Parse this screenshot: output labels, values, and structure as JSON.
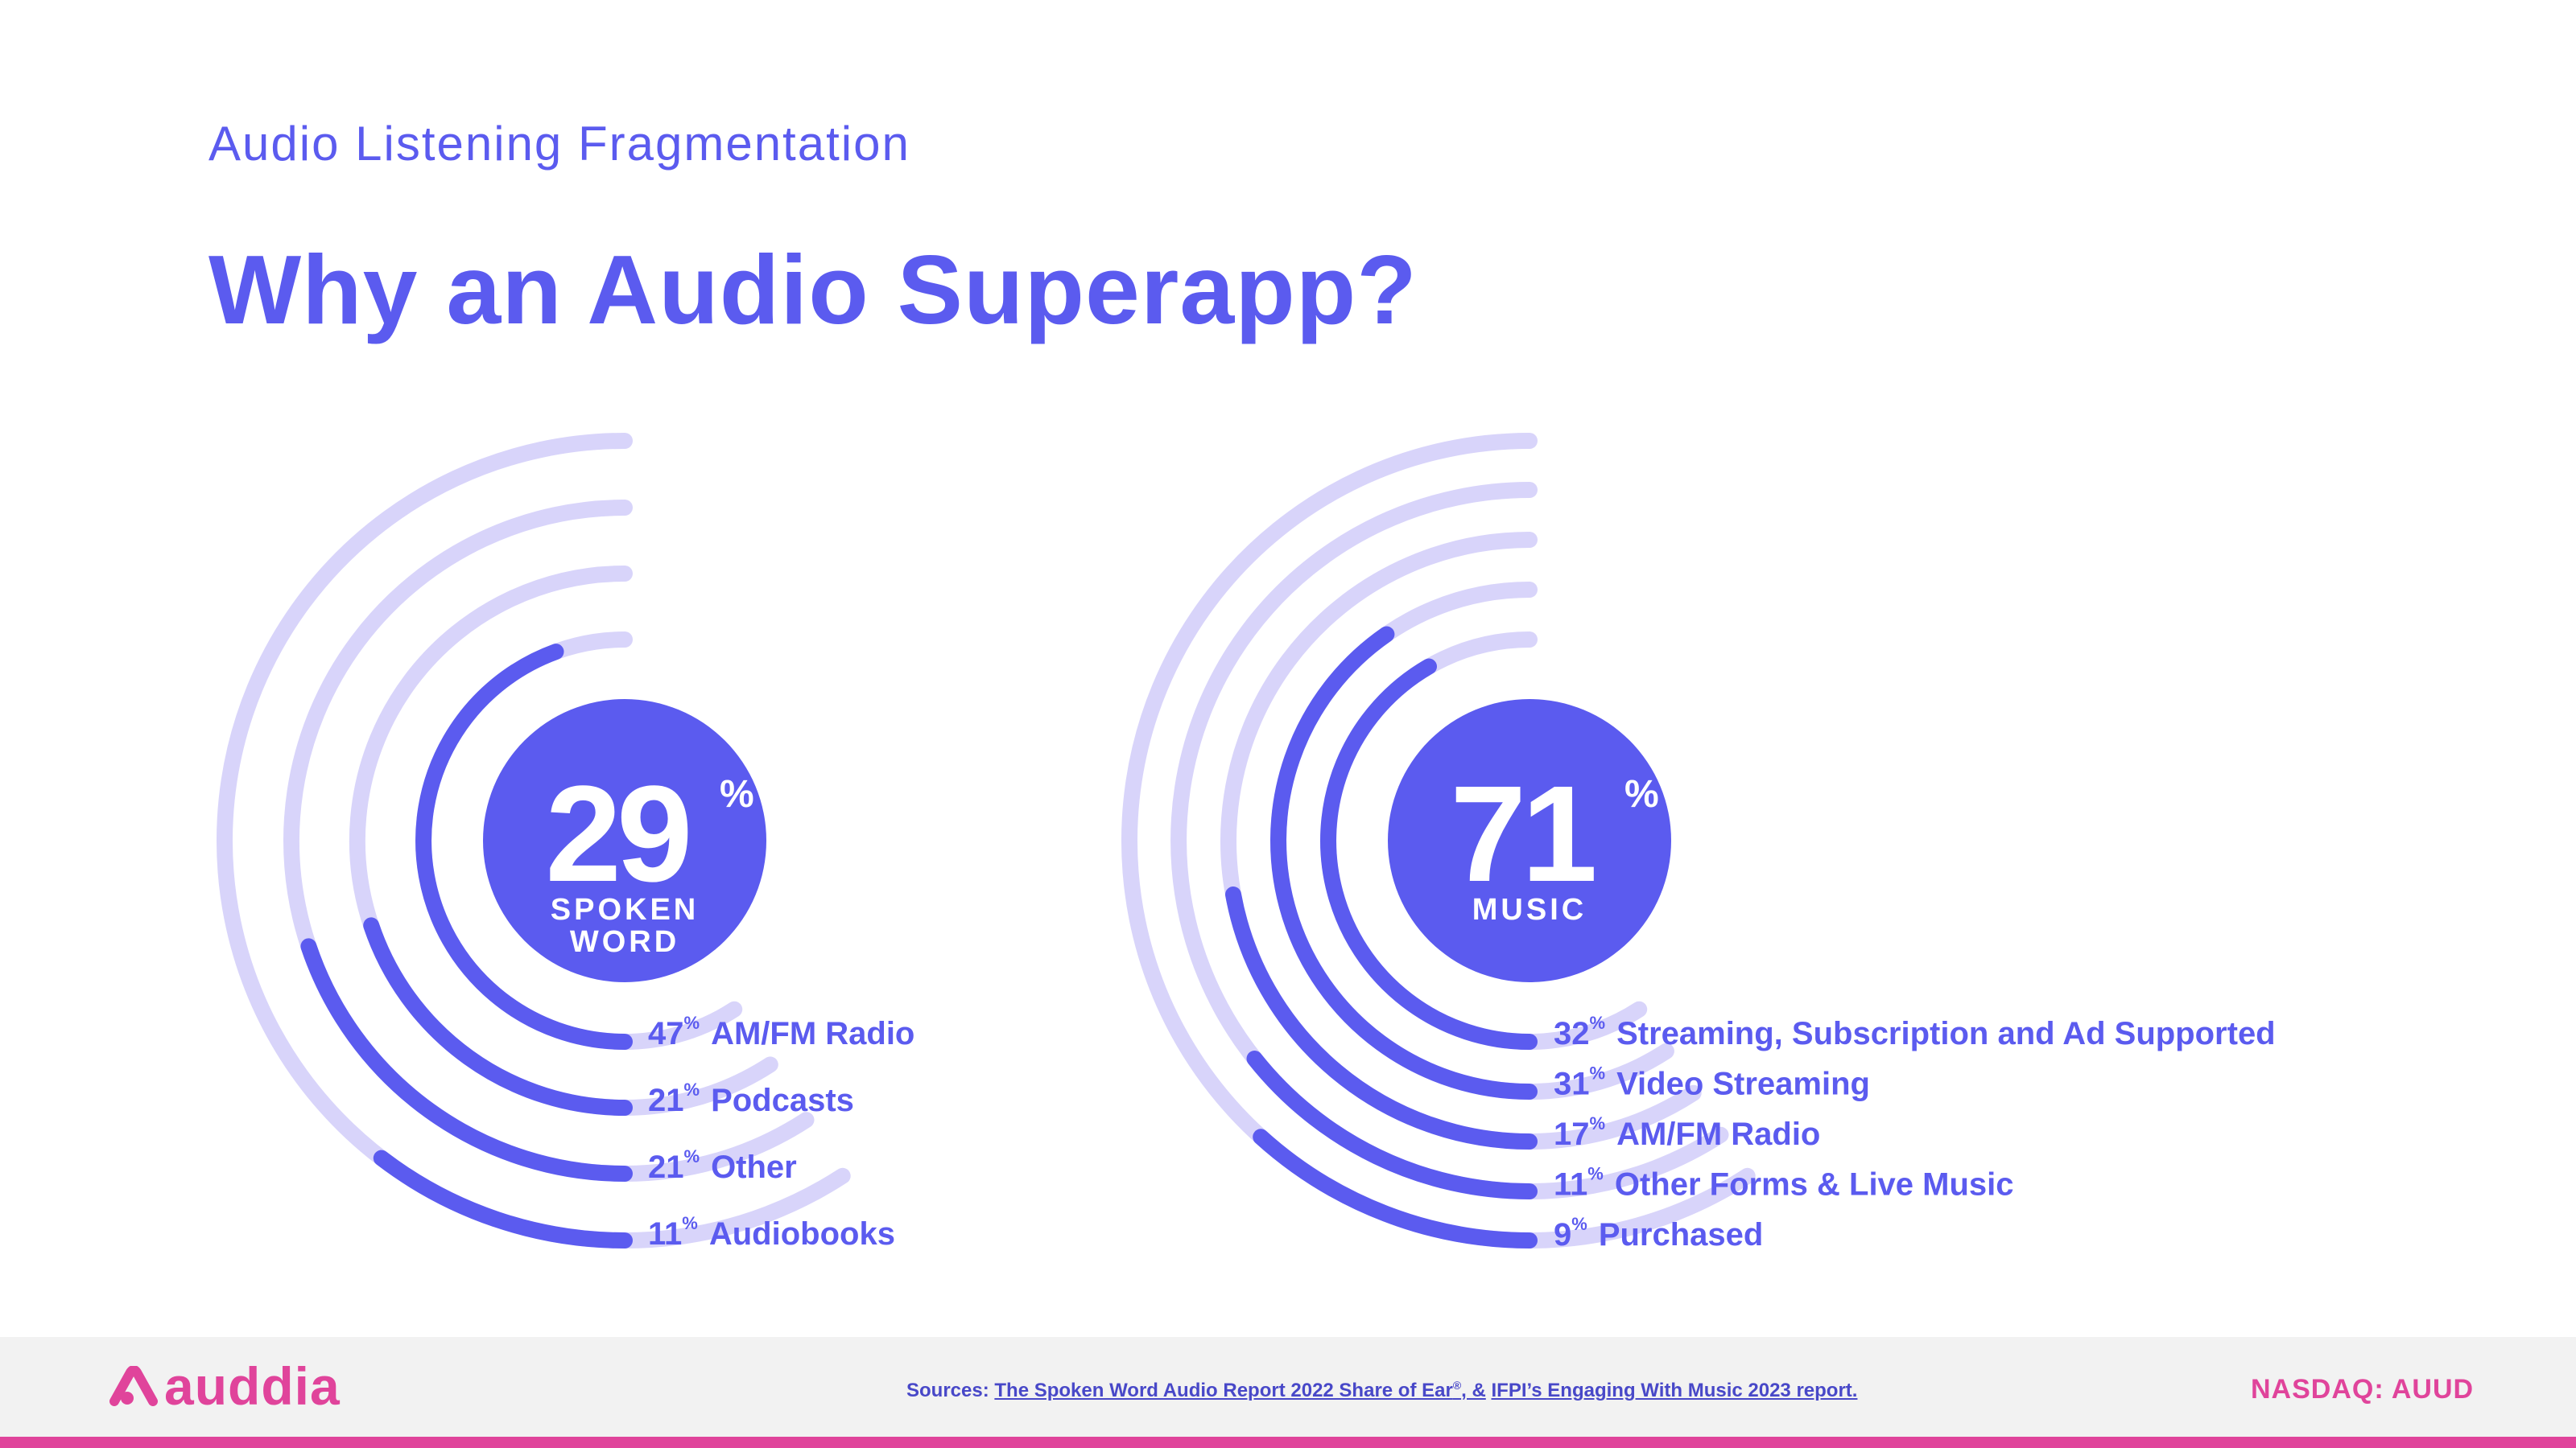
{
  "header": {
    "subtitle": "Audio Listening Fragmentation",
    "title": "Why an Audio Superapp?"
  },
  "colors": {
    "accent": "#5b5bef",
    "track": "#d8d4fa",
    "brand": "#e0449b",
    "footer_bg": "#f2f2f2"
  },
  "chart_data": [
    {
      "type": "radial-bar",
      "center_value": "29",
      "center_unit": "%",
      "center_label": [
        "SPOKEN",
        "WORD"
      ],
      "categories": [
        "AM/FM Radio",
        "Podcasts",
        "Other",
        "Audiobooks"
      ],
      "values": [
        47,
        21,
        21,
        11
      ],
      "value_unit": "%"
    },
    {
      "type": "radial-bar",
      "center_value": "71",
      "center_unit": "%",
      "center_label": [
        "MUSIC"
      ],
      "categories": [
        "Streaming, Subscription and Ad Supported",
        "Video Streaming",
        "AM/FM Radio",
        "Other Forms & Live Music",
        "Purchased"
      ],
      "values": [
        32,
        31,
        17,
        11,
        9
      ],
      "value_unit": "%"
    }
  ],
  "footer": {
    "logo_icon": "auddia-logo-icon",
    "logo_text": "auddia",
    "sources_prefix": "Sources:",
    "source_1": "The Spoken Word Audio Report 2022 Share of Ear",
    "source_1_mark": "®",
    "source_1_suffix": ", &",
    "source_2": "IFPI’s Engaging With Music 2023 report.",
    "ticker": "NASDAQ: AUUD"
  }
}
